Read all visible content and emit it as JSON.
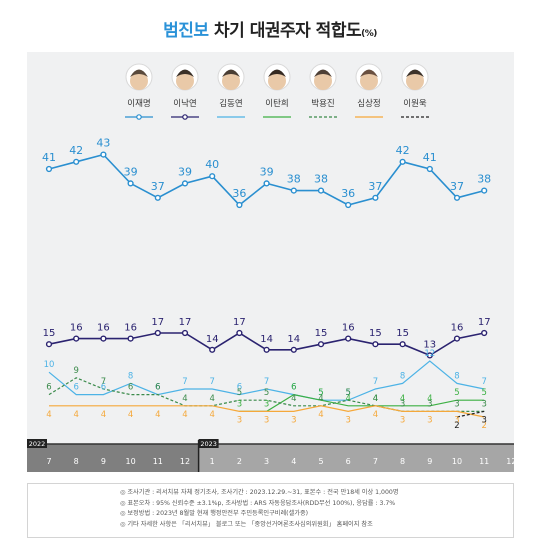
{
  "title": {
    "highlight": "범진보",
    "rest": " 차기 대권주자 적합도",
    "unit": "(%)"
  },
  "chart_data": {
    "type": "line",
    "categories": [
      "7",
      "8",
      "9",
      "10",
      "11",
      "12",
      "1",
      "2",
      "3",
      "4",
      "5",
      "6",
      "7",
      "8",
      "9",
      "10",
      "11",
      "12"
    ],
    "year_markers": [
      {
        "label": "2022",
        "index": 0
      },
      {
        "label": "2023",
        "index": 6
      }
    ],
    "series": [
      {
        "name": "이재명",
        "color": "#2a8fd0",
        "style": "solid",
        "values": [
          41,
          42,
          43,
          39,
          37,
          39,
          40,
          36,
          39,
          38,
          38,
          36,
          37,
          42,
          41,
          37,
          38,
          null
        ],
        "markers": true
      },
      {
        "name": "이낙연",
        "color": "#2b2370",
        "style": "solid",
        "values": [
          15,
          16,
          16,
          16,
          17,
          17,
          14,
          17,
          14,
          14,
          15,
          16,
          15,
          15,
          13,
          16,
          17,
          null
        ],
        "markers": true
      },
      {
        "name": "김동연",
        "color": "#4db3e6",
        "style": "solid",
        "values": [
          10,
          6,
          6,
          8,
          6,
          7,
          7,
          6,
          7,
          6,
          5,
          5,
          7,
          8,
          12,
          8,
          7,
          null
        ],
        "markers": false
      },
      {
        "name": "이탄희",
        "color": "#3cb043",
        "style": "solid",
        "values": [
          null,
          null,
          null,
          null,
          null,
          null,
          null,
          3,
          3,
          6,
          5,
          4,
          4,
          4,
          4,
          5,
          5,
          null
        ],
        "markers": false
      },
      {
        "name": "박용진",
        "color": "#3a8a4a",
        "style": "dashed",
        "values": [
          6,
          9,
          7,
          6,
          6,
          4,
          4,
          5,
          5,
          4,
          4,
          5,
          4,
          3,
          3,
          3,
          3,
          null
        ],
        "markers": false
      },
      {
        "name": "심상정",
        "color": "#f5a83a",
        "style": "solid",
        "values": [
          4,
          4,
          4,
          4,
          4,
          4,
          4,
          3,
          3,
          3,
          4,
          3,
          4,
          3,
          3,
          3,
          2,
          null
        ],
        "markers": false
      },
      {
        "name": "이원욱",
        "color": "#222222",
        "style": "dashed",
        "values": [
          null,
          null,
          null,
          null,
          null,
          null,
          null,
          null,
          null,
          null,
          null,
          null,
          null,
          null,
          null,
          2,
          3,
          null
        ],
        "markers": false
      }
    ],
    "x_labels_shown": [
      "7",
      "8",
      "9",
      "10",
      "11",
      "12",
      "1",
      "2",
      "3",
      "4",
      "5",
      "6",
      "7",
      "8",
      "9",
      "10",
      "11",
      "12"
    ]
  },
  "notes": [
    "◎ 조사기관 : 리서치뷰 자체 정기조사, 조사기간 : 2023.12.29.~31, 표본수 : 전국 만18세 이상 1,000명",
    "◎ 표본오차 : 95% 신뢰수준 ±3.1%p, 조사방법 : ARS 자동응답조사(RDD무선 100%), 응답률 : 3.7%",
    "◎ 보정방법 : 2023년 8월말 현재 행정안전부 주민등록인구비례(셀가중)",
    "◎ 기타 자세한 사항은 「리서치뷰」 블로그 또는 「중앙선거여론조사심의위원회」 홈페이지 참조"
  ]
}
